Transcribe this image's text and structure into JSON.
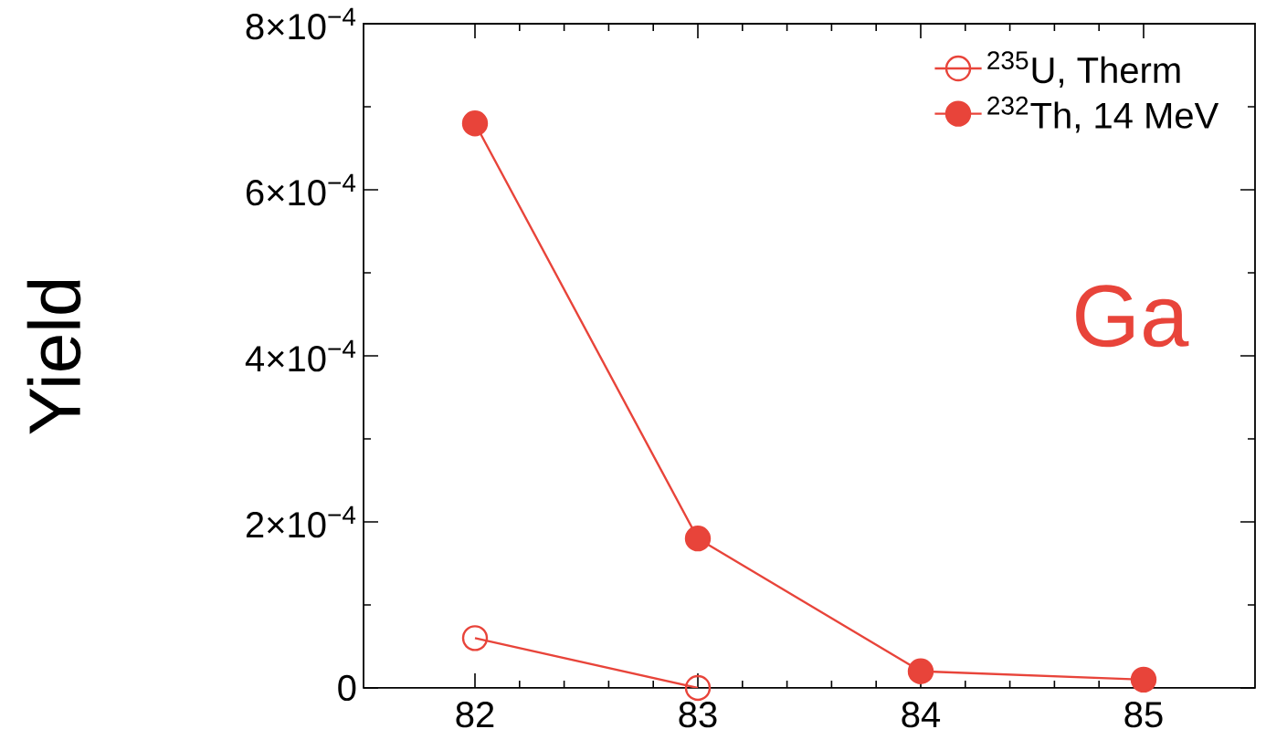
{
  "chart_data": {
    "type": "line",
    "ylabel": "Yield",
    "x": [
      82,
      83,
      84,
      85
    ],
    "series": [
      {
        "name": "$^{235}$U, Therm",
        "color": "#e8443a",
        "marker": "open circle",
        "values": [
          6e-05,
          0,
          null,
          null
        ]
      },
      {
        "name": "$^{232}$Th, 14 MeV",
        "color": "#e8443a",
        "marker": "circle",
        "values": [
          0.00068,
          0.00018,
          2e-05,
          1e-05
        ]
      }
    ],
    "xlim": [
      81.5,
      85.5
    ],
    "ylim": [
      0,
      0.0008
    ],
    "xticks": [
      82,
      83,
      84,
      85
    ],
    "yticks": [
      {
        "value": 0,
        "label": "0"
      },
      {
        "value": 0.0002,
        "label": "2×10$^{−4}$"
      },
      {
        "value": 0.0004,
        "label": "4×10$^{−4}$"
      },
      {
        "value": 0.0006,
        "label": "6×10$^{−4}$"
      },
      {
        "value": 0.0008,
        "label": "8×10$^{−4}$"
      }
    ],
    "legend": "top right",
    "line_style": "solid",
    "annotations": [
      "Ga"
    ]
  }
}
